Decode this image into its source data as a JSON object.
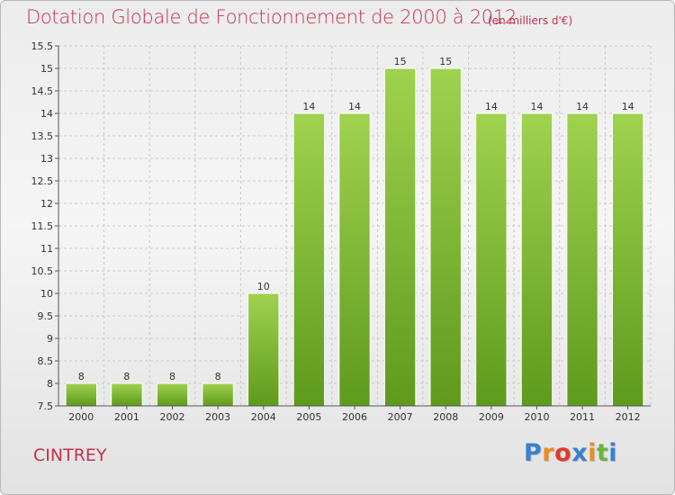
{
  "title": "Dotation Globale de Fonctionnement de 2000 à 2012",
  "subtitle": "(en milliers d'€)",
  "commune": "CINTREY",
  "logo": {
    "text": "Proxiti",
    "letters": [
      "P",
      "r",
      "o",
      "x",
      "i",
      "t",
      "i"
    ],
    "colors": [
      "#3a7fd0",
      "#f08a1c",
      "#e23a2c",
      "#3a7fd0",
      "#f08a1c",
      "#6cb33f",
      "#3a7fd0"
    ]
  },
  "colors": {
    "title": "#c0334d",
    "bar_light": "#9fd24e",
    "bar_dark": "#5e9a1c",
    "grid": "#c8c8c8",
    "axis": "#555555"
  },
  "chart_data": {
    "type": "bar",
    "title": "Dotation Globale de Fonctionnement de 2000 à 2012",
    "subtitle": "(en milliers d'€)",
    "xlabel": "",
    "ylabel": "",
    "categories": [
      "2000",
      "2001",
      "2002",
      "2003",
      "2004",
      "2005",
      "2006",
      "2007",
      "2008",
      "2009",
      "2010",
      "2011",
      "2012"
    ],
    "values": [
      8,
      8,
      8,
      8,
      10,
      14,
      14,
      15,
      15,
      14,
      14,
      14,
      14
    ],
    "data_labels": [
      "8",
      "8",
      "8",
      "8",
      "10",
      "14",
      "14",
      "15",
      "15",
      "14",
      "14",
      "14",
      "14"
    ],
    "ylim": [
      7.5,
      15.5
    ],
    "yticks": [
      7.5,
      8,
      8.5,
      9,
      9.5,
      10,
      10.5,
      11,
      11.5,
      12,
      12.5,
      13,
      13.5,
      14,
      14.5,
      15,
      15.5
    ],
    "ytick_labels": [
      "7.5",
      "8",
      "8.5",
      "9",
      "9.5",
      "10",
      "10.5",
      "11",
      "11.5",
      "12",
      "12.5",
      "13",
      "13.5",
      "14",
      "14.5",
      "15",
      "15.5"
    ],
    "grid": true,
    "legend": "none"
  }
}
